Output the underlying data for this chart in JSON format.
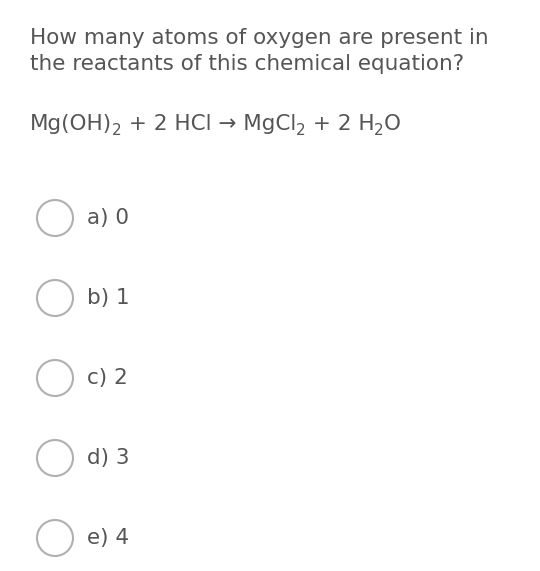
{
  "background_color": "#ffffff",
  "question_line1": "How many atoms of oxygen are present in",
  "question_line2": "the reactants of this chemical equation?",
  "text_color": "#555555",
  "circle_edge_color": "#b0b0b0",
  "question_fontsize": 15.5,
  "option_fontsize": 15.5,
  "eq_fontsize": 15.5,
  "eq_sub_fontsize": 11,
  "options": [
    {
      "label": "a)",
      "value": "0"
    },
    {
      "label": "b)",
      "value": "1"
    },
    {
      "label": "c)",
      "value": "2"
    },
    {
      "label": "d)",
      "value": "3"
    },
    {
      "label": "e)",
      "value": "4"
    }
  ]
}
